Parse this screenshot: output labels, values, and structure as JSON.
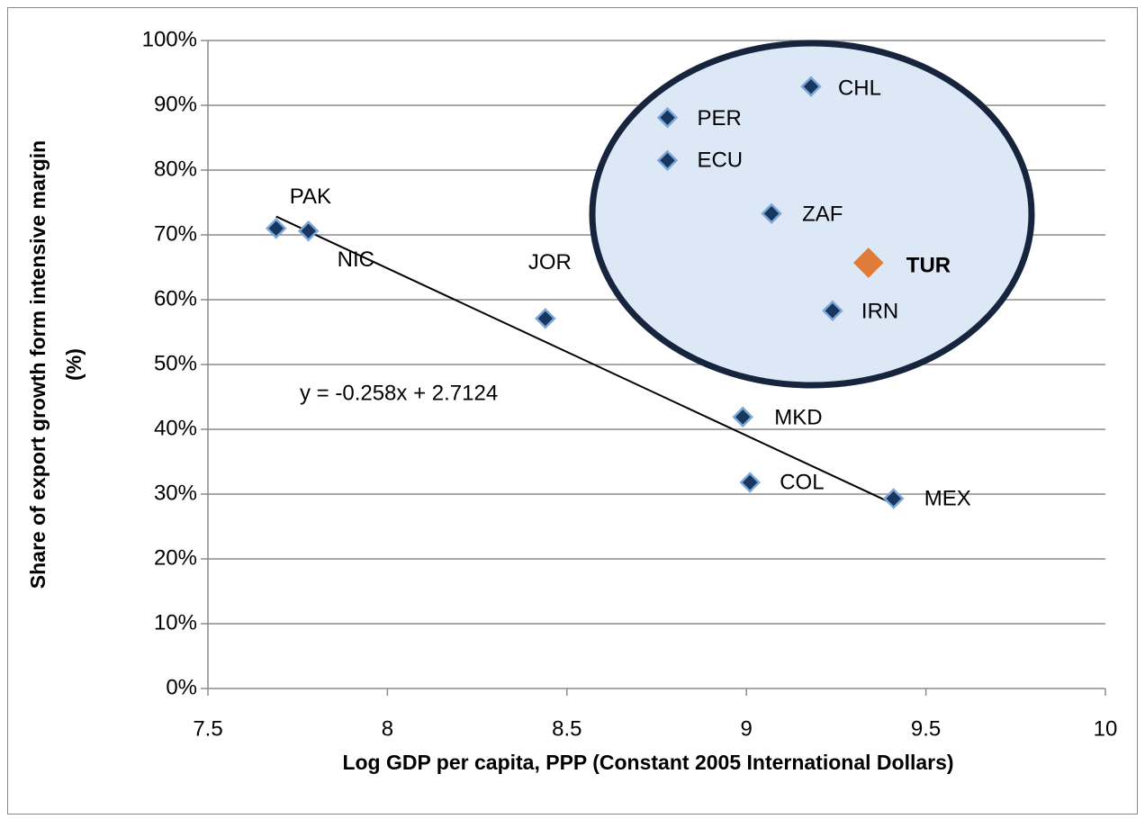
{
  "chart_data": {
    "type": "scatter",
    "x_label": "Log GDP per capita, PPP (Constant 2005 International Dollars)",
    "y_label": [
      "Share of export growth form intensive margin",
      "(%)"
    ],
    "labels": [
      "PAK",
      "NIC",
      "JOR",
      "PER",
      "ECU",
      "CHL",
      "ZAF",
      "TUR",
      "IRN",
      "MKD",
      "COL",
      "MEX"
    ],
    "x": [
      7.69,
      7.78,
      8.44,
      8.78,
      8.78,
      9.18,
      9.07,
      9.34,
      9.24,
      8.99,
      9.01,
      9.41
    ],
    "values": [
      71.0,
      70.6,
      57.1,
      88.1,
      81.5,
      92.9,
      73.3,
      65.7,
      58.3,
      41.9,
      31.8,
      29.3
    ],
    "colors": [
      "#17375e",
      "#17375e",
      "#17375e",
      "#17375e",
      "#17375e",
      "#17375e",
      "#17375e",
      "#e07b39",
      "#17375e",
      "#17375e",
      "#17375e",
      "#17375e"
    ],
    "marker_edge_color": "#7da7d9",
    "highlighted": "TUR",
    "trendline": {
      "slope": -0.258,
      "intercept": 2.7124,
      "label": "y = -0.258x + 2.7124"
    },
    "xlim": [
      7.5,
      10
    ],
    "xticks": [
      7.5,
      8,
      8.5,
      9,
      9.5,
      10
    ],
    "ylim": [
      0,
      100
    ],
    "yticks": [
      {
        "value": 0,
        "label": "0%"
      },
      {
        "value": 10,
        "label": "10%"
      },
      {
        "value": 20,
        "label": "20%"
      },
      {
        "value": 30,
        "label": "30%"
      },
      {
        "value": 40,
        "label": "40%"
      },
      {
        "value": 50,
        "label": "50%"
      },
      {
        "value": 60,
        "label": "60%"
      },
      {
        "value": 70,
        "label": "70%"
      },
      {
        "value": 80,
        "label": "80%"
      },
      {
        "value": 90,
        "label": "90%"
      },
      {
        "value": 100,
        "label": "100%"
      }
    ],
    "grid": true
  }
}
